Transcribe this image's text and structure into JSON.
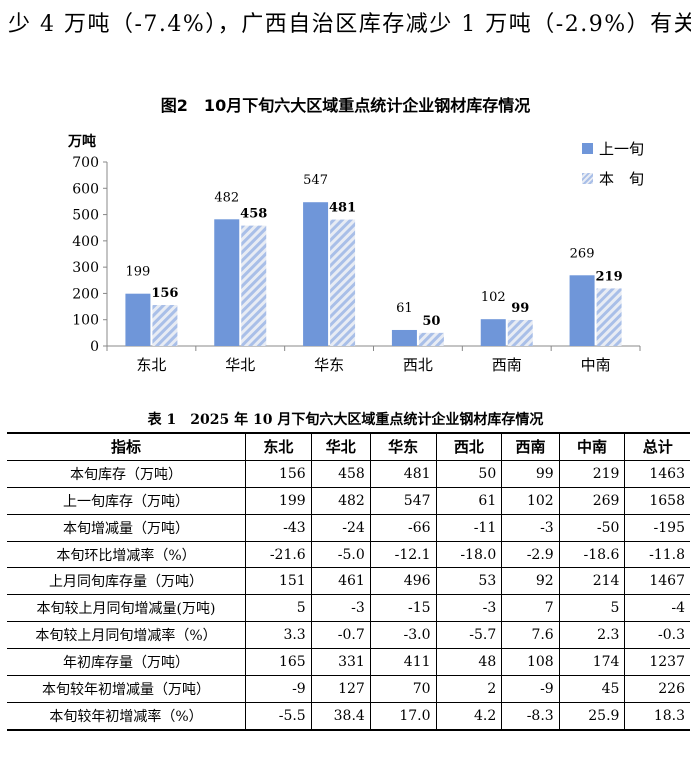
{
  "paragraph": {
    "text": "少 4 万吨（-7.4%），广西自治区库存减少 1 万吨（-2.9%）有关。"
  },
  "figure": {
    "title": "图2　10月下旬六大区域重点统计企业钢材库存情况",
    "unit_label": "万吨",
    "legend": {
      "prev": "上一旬",
      "cur": "本　旬"
    }
  },
  "chart_data": {
    "type": "bar",
    "title": "图2 10月下旬六大区域重点统计企业钢材库存情况",
    "ylabel": "万吨",
    "xlabel": "",
    "ylim": [
      0,
      700
    ],
    "yticks": [
      0,
      100,
      200,
      300,
      400,
      500,
      600,
      700
    ],
    "categories": [
      "东北",
      "华北",
      "华东",
      "西北",
      "西南",
      "中南"
    ],
    "series": [
      {
        "name": "上一旬",
        "values": [
          199,
          482,
          547,
          61,
          102,
          269
        ],
        "color": "#6f96d9"
      },
      {
        "name": "本　旬",
        "values": [
          156,
          458,
          481,
          50,
          99,
          219
        ],
        "color": "#a9bfe8"
      }
    ],
    "legend_position": "top-right",
    "grid": false
  },
  "table": {
    "title": "表 1　2025 年 10 月下旬六大区域重点统计企业钢材库存情况",
    "headers": [
      "指标",
      "东北",
      "华北",
      "华东",
      "西北",
      "西南",
      "中南",
      "总计"
    ],
    "rows": [
      [
        "本旬库存（万吨）",
        "156",
        "458",
        "481",
        "50",
        "99",
        "219",
        "1463"
      ],
      [
        "上一旬库存（万吨）",
        "199",
        "482",
        "547",
        "61",
        "102",
        "269",
        "1658"
      ],
      [
        "本旬增减量（万吨）",
        "-43",
        "-24",
        "-66",
        "-11",
        "-3",
        "-50",
        "-195"
      ],
      [
        "本旬环比增减率（%）",
        "-21.6",
        "-5.0",
        "-12.1",
        "-18.0",
        "-2.9",
        "-18.6",
        "-11.8"
      ],
      [
        "上月同旬库存量（万吨）",
        "151",
        "461",
        "496",
        "53",
        "92",
        "214",
        "1467"
      ],
      [
        "本旬较上月同旬增减量(万吨)",
        "5",
        "-3",
        "-15",
        "-3",
        "7",
        "5",
        "-4"
      ],
      [
        "本旬较上月同旬增减率（%）",
        "3.3",
        "-0.7",
        "-3.0",
        "-5.7",
        "7.6",
        "2.3",
        "-0.3"
      ],
      [
        "年初库存量（万吨）",
        "165",
        "331",
        "411",
        "48",
        "108",
        "174",
        "1237"
      ],
      [
        "本旬较年初增减量（万吨）",
        "-9",
        "127",
        "70",
        "2",
        "-9",
        "45",
        "226"
      ],
      [
        "本旬较年初增减率（%）",
        "-5.5",
        "38.4",
        "17.0",
        "4.2",
        "-8.3",
        "25.9",
        "18.3"
      ]
    ]
  }
}
